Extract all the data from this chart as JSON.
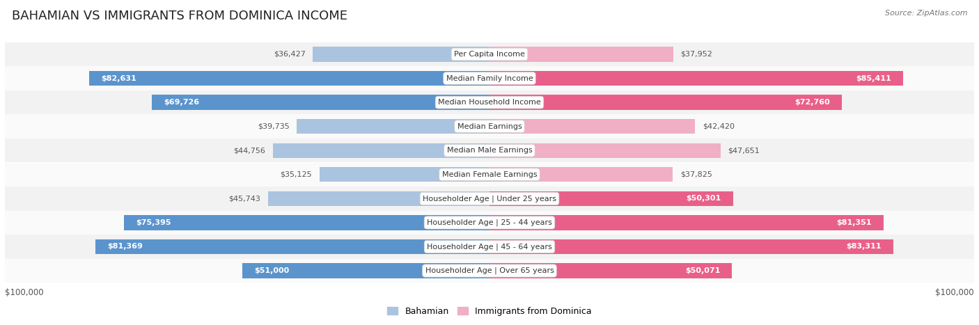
{
  "title": "BAHAMIAN VS IMMIGRANTS FROM DOMINICA INCOME",
  "source": "Source: ZipAtlas.com",
  "categories": [
    "Per Capita Income",
    "Median Family Income",
    "Median Household Income",
    "Median Earnings",
    "Median Male Earnings",
    "Median Female Earnings",
    "Householder Age | Under 25 years",
    "Householder Age | 25 - 44 years",
    "Householder Age | 45 - 64 years",
    "Householder Age | Over 65 years"
  ],
  "bahamian": [
    36427,
    82631,
    69726,
    39735,
    44756,
    35125,
    45743,
    75395,
    81369,
    51000
  ],
  "dominica": [
    37952,
    85411,
    72760,
    42420,
    47651,
    37825,
    50301,
    81351,
    83311,
    50071
  ],
  "max_val": 100000,
  "blue_light": "#aac4e0",
  "blue_dark": "#5b94cc",
  "pink_light": "#f0afc5",
  "pink_dark": "#e8608a",
  "threshold": 50000,
  "row_bg_odd": "#f2f2f2",
  "row_bg_even": "#fafafa",
  "legend_bahamian": "Bahamian",
  "legend_dominica": "Immigrants from Dominica",
  "title_fontsize": 13,
  "label_fontsize": 8.5,
  "value_fontsize": 8.0,
  "cat_fontsize": 8.0
}
